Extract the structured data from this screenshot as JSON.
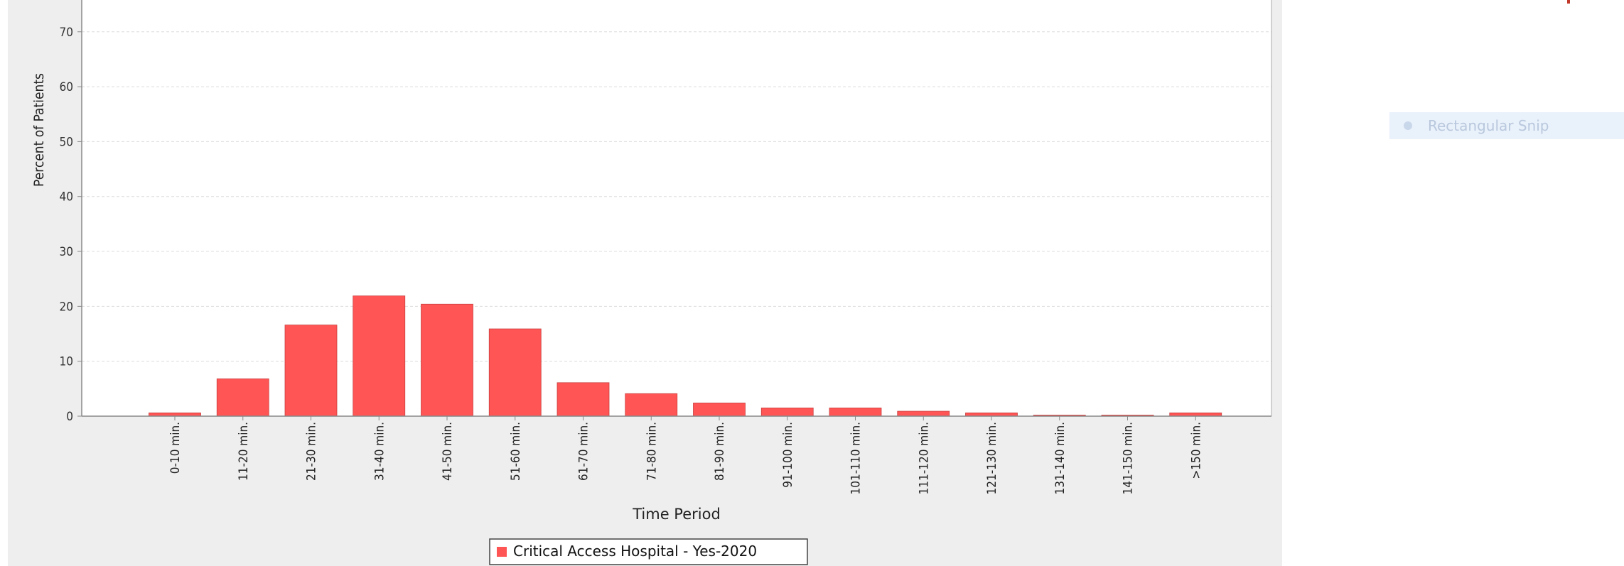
{
  "chart_data": {
    "type": "bar",
    "title": "",
    "ylabel": "Percent of Patients",
    "xlabel": "Time Period",
    "ylim": [
      0,
      70
    ],
    "yticks": [
      0,
      10,
      20,
      30,
      40,
      50,
      60,
      70
    ],
    "grid": true,
    "legend_position": "bottom",
    "categories": [
      "0-10 min.",
      "11-20 min.",
      "21-30 min.",
      "31-40 min.",
      "41-50 min.",
      "51-60 min.",
      "61-70 min.",
      "71-80 min.",
      "81-90 min.",
      "91-100 min.",
      "101-110 min.",
      "111-120 min.",
      "121-130 min.",
      "131-140 min.",
      "141-150 min.",
      ">150 min."
    ],
    "series": [
      {
        "name": "Critical Access Hospital - Yes-2020",
        "color": "#ff5555",
        "values": [
          0.6,
          6.8,
          16.6,
          21.9,
          20.4,
          15.9,
          6.1,
          4.1,
          2.4,
          1.5,
          1.5,
          0.9,
          0.6,
          0.2,
          0.2,
          0.6
        ]
      }
    ]
  },
  "snip_tool": {
    "label": "Rectangular Snip"
  }
}
